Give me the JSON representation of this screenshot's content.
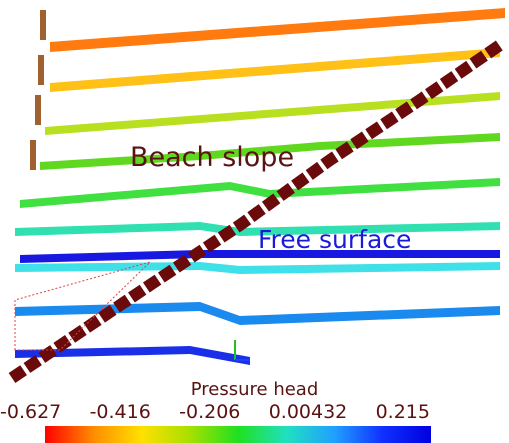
{
  "annotations": [
    "Beach slope",
    "Free surface"
  ],
  "colorbar": {
    "title": "Pressure head",
    "ticks": [
      "-0.627",
      "-0.416",
      "-0.206",
      "0.00432",
      "0.215"
    ]
  }
}
